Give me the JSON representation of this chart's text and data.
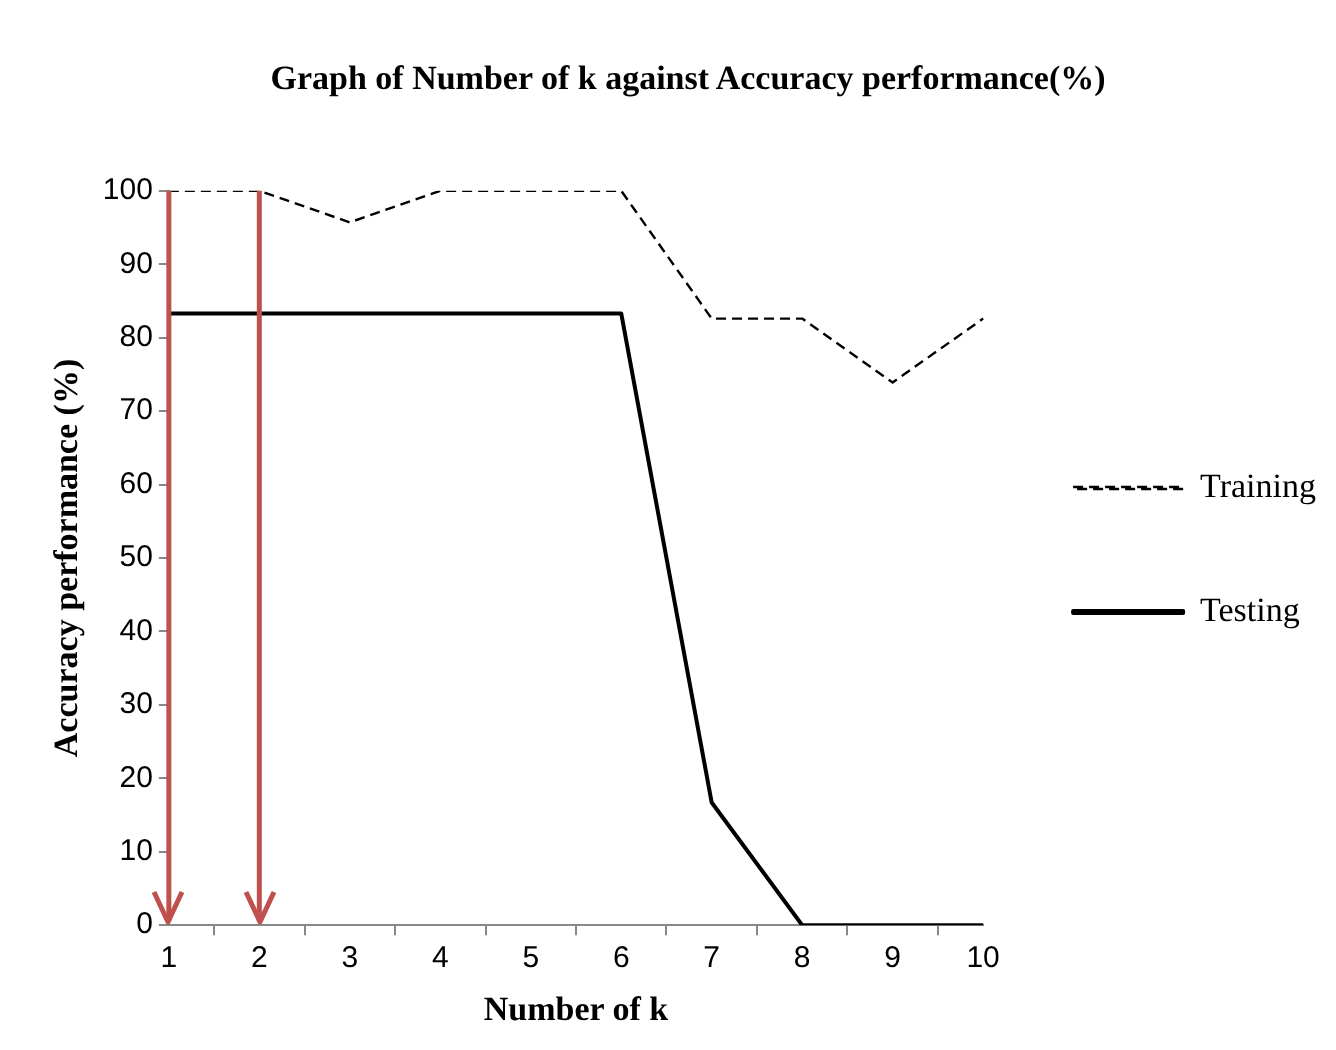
{
  "chart_data": {
    "type": "line",
    "title": "Graph of Number of k against Accuracy performance(%)",
    "xlabel": "Number of k",
    "ylabel": "Accuracy performance (%)",
    "categories": [
      "1",
      "2",
      "3",
      "4",
      "5",
      "6",
      "7",
      "8",
      "9",
      "10"
    ],
    "series": [
      {
        "name": "Training",
        "color": "#000000",
        "line_style": "dashed",
        "values": [
          100,
          100,
          95.7,
          100,
          100,
          100,
          82.6,
          82.6,
          73.9,
          82.6
        ]
      },
      {
        "name": "Testing",
        "color": "#000000",
        "line_style": "solid",
        "values": [
          83.3,
          83.3,
          83.3,
          83.3,
          83.3,
          83.3,
          16.7,
          0,
          0,
          0
        ]
      }
    ],
    "ref_lines": [
      {
        "axis": "x",
        "value": "1",
        "color": "#c0504d"
      },
      {
        "axis": "x",
        "value": "2",
        "color": "#c0504d"
      }
    ],
    "ylim": [
      0,
      100
    ],
    "yticks": [
      0,
      10,
      20,
      30,
      40,
      50,
      60,
      70,
      80,
      90,
      100
    ],
    "grid": false,
    "legend": "right",
    "marker": "none"
  }
}
